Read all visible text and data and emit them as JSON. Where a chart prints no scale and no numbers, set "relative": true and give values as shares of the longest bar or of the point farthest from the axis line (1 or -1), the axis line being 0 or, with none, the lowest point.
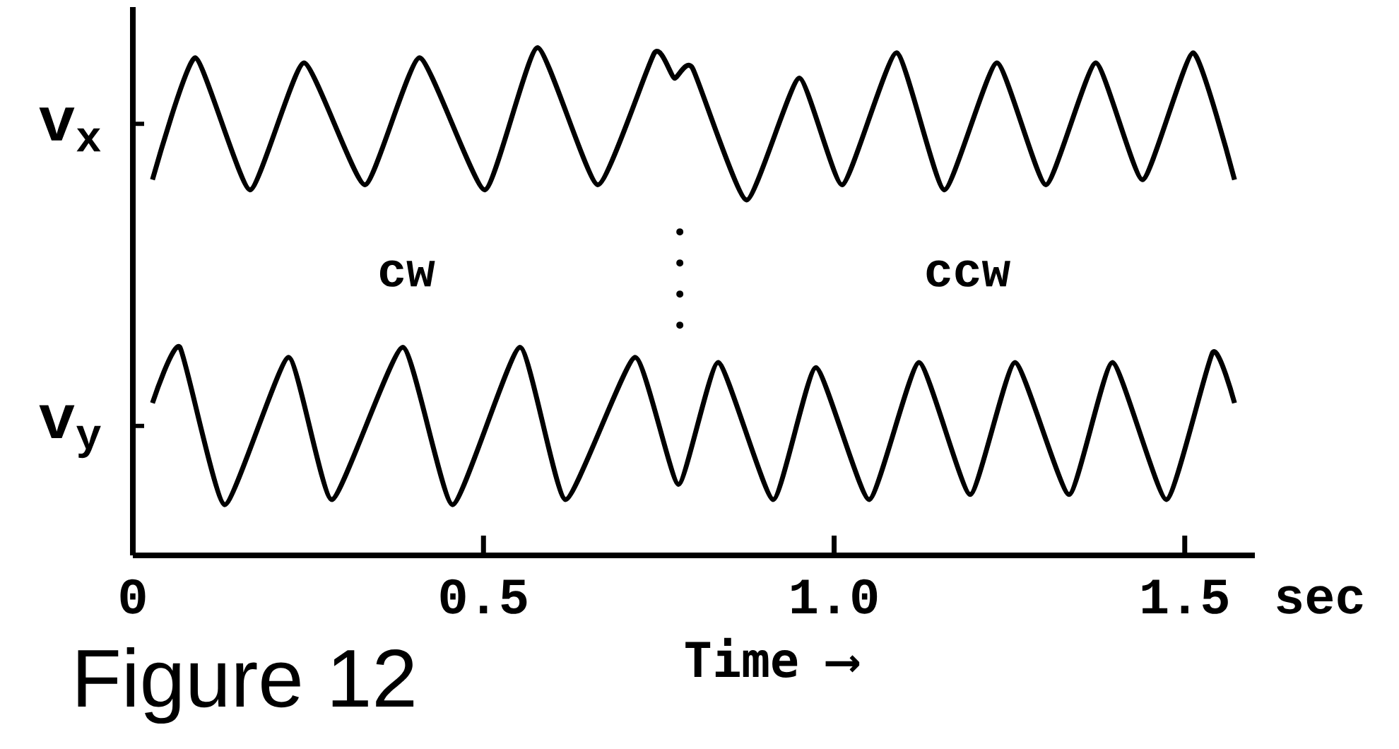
{
  "chart_data": {
    "type": "line",
    "title": "Figure 12",
    "xlabel": "Time ⟶",
    "relative": true,
    "legend": "left",
    "xlim": [
      0,
      1.6
    ],
    "xticks": [
      0,
      0.5,
      {
        "value": 1,
        "label": "1.0"
      },
      1.5
    ],
    "series": [
      {
        "name": "v$_{x}$",
        "color": "#000000",
        "x": [
          0.028,
          0.089,
          0.167,
          0.244,
          0.331,
          0.409,
          0.502,
          0.577,
          0.663,
          0.744,
          0.772,
          0.798,
          0.875,
          0.95,
          1.012,
          1.089,
          1.157,
          1.232,
          1.302,
          1.373,
          1.44,
          1.512,
          1.571
        ],
        "values": [
          0.74,
          0.98,
          0.72,
          0.97,
          0.73,
          0.98,
          0.72,
          1.0,
          0.73,
          0.99,
          0.94,
          0.96,
          0.7,
          0.94,
          0.73,
          0.99,
          0.72,
          0.97,
          0.73,
          0.97,
          0.74,
          0.99,
          0.74
        ]
      },
      {
        "name": "v$_{y}$",
        "color": "#000000",
        "x": [
          0.028,
          0.067,
          0.131,
          0.222,
          0.284,
          0.385,
          0.456,
          0.552,
          0.617,
          0.716,
          0.778,
          0.835,
          0.913,
          0.974,
          1.05,
          1.121,
          1.194,
          1.258,
          1.335,
          1.397,
          1.474,
          1.54,
          1.571
        ],
        "values": [
          0.3,
          0.41,
          0.1,
          0.39,
          0.11,
          0.41,
          0.1,
          0.41,
          0.11,
          0.39,
          0.14,
          0.38,
          0.11,
          0.37,
          0.11,
          0.38,
          0.12,
          0.38,
          0.12,
          0.38,
          0.11,
          0.4,
          0.3
        ]
      }
    ],
    "ref_lines": [
      {
        "axis": "x",
        "value": 0.78,
        "line_style": "dotted"
      }
    ],
    "annotations": [
      "cw",
      "ccw",
      "sec"
    ]
  }
}
